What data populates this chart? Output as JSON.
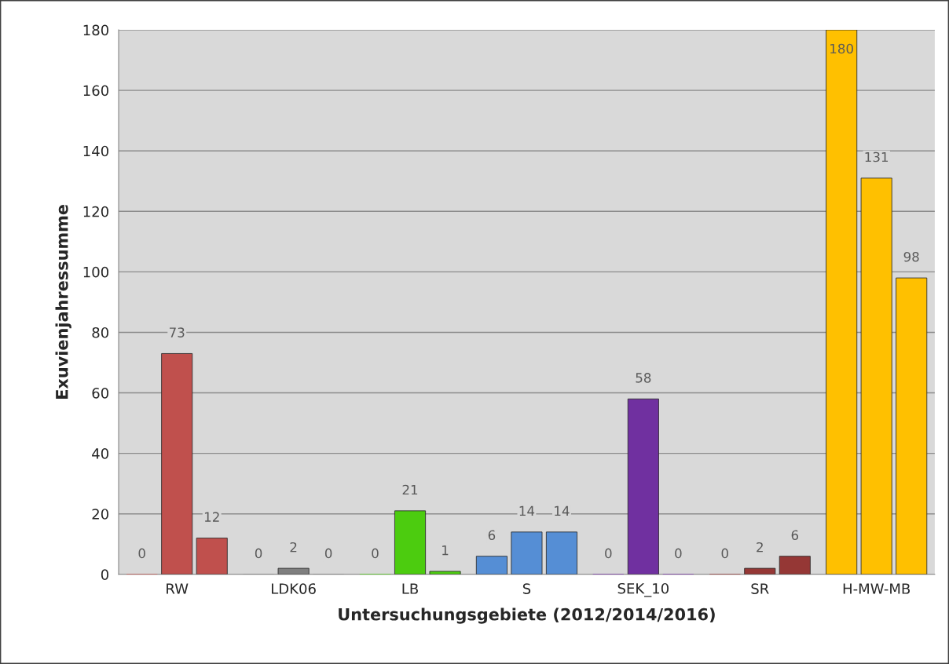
{
  "chart_data": {
    "type": "bar",
    "xlabel": "Untersuchungsgebiete (2012/2014/2016)",
    "ylabel": "Exuvienjahressumme",
    "categories": [
      "RW",
      "LDK06",
      "LB",
      "S",
      "SEK_10",
      "SR",
      "H-MW-MB"
    ],
    "series": [
      {
        "colors": [
          "#c0504d",
          "#7f7f7f",
          "#4ccc0f",
          "#558ed5",
          "#7030a0",
          "#953735",
          "#ffc000"
        ],
        "values": [
          0,
          0,
          0,
          6,
          0,
          0,
          180
        ]
      },
      {
        "colors": [
          "#c0504d",
          "#7f7f7f",
          "#4ccc0f",
          "#558ed5",
          "#7030a0",
          "#953735",
          "#ffc000"
        ],
        "values": [
          73,
          2,
          21,
          14,
          58,
          2,
          131
        ]
      },
      {
        "colors": [
          "#c0504d",
          "#7f7f7f",
          "#4ccc0f",
          "#558ed5",
          "#7030a0",
          "#953735",
          "#ffc000"
        ],
        "values": [
          12,
          0,
          1,
          14,
          0,
          6,
          98
        ]
      }
    ],
    "ylim": [
      0,
      180
    ],
    "yticks": [
      0,
      20,
      40,
      60,
      80,
      100,
      120,
      140,
      160,
      180
    ],
    "grid": "y",
    "data_labels": true,
    "legend": false
  }
}
